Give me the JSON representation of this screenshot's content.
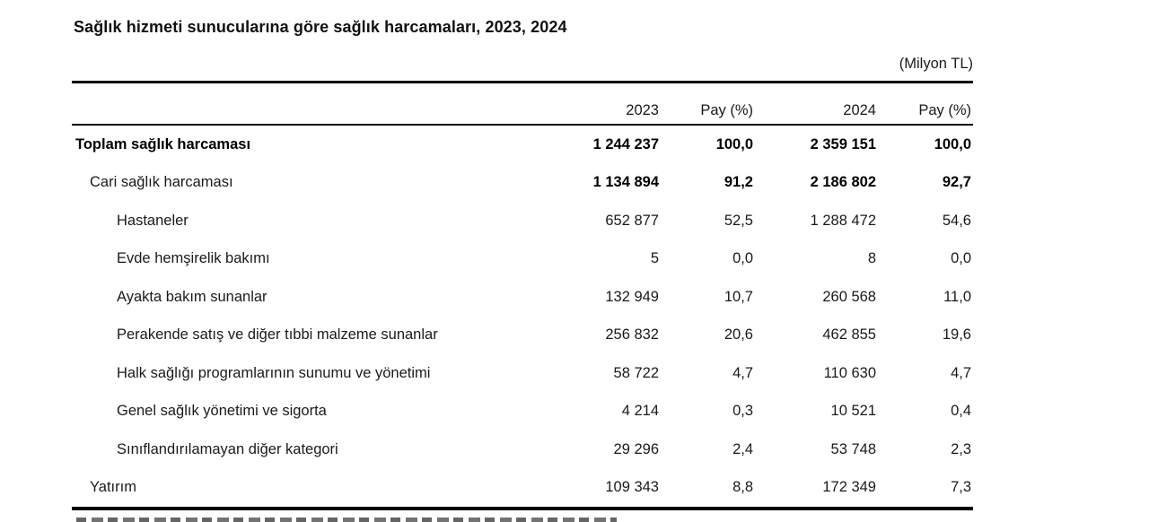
{
  "title": "Sağlık hizmeti sunucularına göre sağlık harcamaları, 2023, 2024",
  "unit_label": "(Milyon TL)",
  "colors": {
    "background": "#ffffff",
    "text": "#1a1a1a",
    "rule": "#000000"
  },
  "table": {
    "columns": [
      "2023",
      "Pay (%)",
      "2024",
      "Pay (%)"
    ],
    "rows": [
      {
        "label": "Toplam sağlık harcaması",
        "indent": 0,
        "bold_label": true,
        "bold_values": true,
        "values": [
          "1 244 237",
          "100,0",
          "2 359 151",
          "100,0"
        ]
      },
      {
        "label": "Cari sağlık harcaması",
        "indent": 1,
        "bold_label": false,
        "bold_values": true,
        "values": [
          "1 134 894",
          "91,2",
          "2 186 802",
          "92,7"
        ]
      },
      {
        "label": "Hastaneler",
        "indent": 2,
        "bold_label": false,
        "bold_values": false,
        "values": [
          "652 877",
          "52,5",
          "1 288 472",
          "54,6"
        ]
      },
      {
        "label": "Evde hemşirelik bakımı",
        "indent": 2,
        "bold_label": false,
        "bold_values": false,
        "values": [
          "5",
          "0,0",
          "8",
          "0,0"
        ]
      },
      {
        "label": "Ayakta bakım sunanlar",
        "indent": 2,
        "bold_label": false,
        "bold_values": false,
        "values": [
          "132 949",
          "10,7",
          "260 568",
          "11,0"
        ]
      },
      {
        "label": "Perakende satış ve diğer tıbbi malzeme sunanlar",
        "indent": 2,
        "bold_label": false,
        "bold_values": false,
        "values": [
          "256 832",
          "20,6",
          "462 855",
          "19,6"
        ]
      },
      {
        "label": "Halk sağlığı programlarının sunumu ve yönetimi",
        "indent": 2,
        "bold_label": false,
        "bold_values": false,
        "values": [
          "58 722",
          "4,7",
          "110 630",
          "4,7"
        ]
      },
      {
        "label": "Genel sağlık yönetimi ve sigorta",
        "indent": 2,
        "bold_label": false,
        "bold_values": false,
        "values": [
          "4 214",
          "0,3",
          "10 521",
          "0,4"
        ]
      },
      {
        "label": "Sınıflandırılamayan diğer kategori",
        "indent": 2,
        "bold_label": false,
        "bold_values": false,
        "values": [
          "29 296",
          "2,4",
          "53 748",
          "2,3"
        ]
      },
      {
        "label": "Yatırım",
        "indent": 1,
        "bold_label": false,
        "bold_values": false,
        "values": [
          "109 343",
          "8,8",
          "172 349",
          "7,3"
        ]
      }
    ]
  },
  "chart_data": {
    "type": "table",
    "title": "Sağlık hizmeti sunucularına göre sağlık harcamaları, 2023, 2024",
    "unit": "Milyon TL",
    "columns": [
      "2023",
      "Pay (%)",
      "2024",
      "Pay (%)"
    ],
    "rows": [
      {
        "kategori": "Toplam sağlık harcaması",
        "v2023": 1244237,
        "pay2023": 100.0,
        "v2024": 2359151,
        "pay2024": 100.0
      },
      {
        "kategori": "Cari sağlık harcaması",
        "v2023": 1134894,
        "pay2023": 91.2,
        "v2024": 2186802,
        "pay2024": 92.7
      },
      {
        "kategori": "Hastaneler",
        "v2023": 652877,
        "pay2023": 52.5,
        "v2024": 1288472,
        "pay2024": 54.6
      },
      {
        "kategori": "Evde hemşirelik bakımı",
        "v2023": 5,
        "pay2023": 0.0,
        "v2024": 8,
        "pay2024": 0.0
      },
      {
        "kategori": "Ayakta bakım sunanlar",
        "v2023": 132949,
        "pay2023": 10.7,
        "v2024": 260568,
        "pay2024": 11.0
      },
      {
        "kategori": "Perakende satış ve diğer tıbbi malzeme sunanlar",
        "v2023": 256832,
        "pay2023": 20.6,
        "v2024": 462855,
        "pay2024": 19.6
      },
      {
        "kategori": "Halk sağlığı programlarının sunumu ve yönetimi",
        "v2023": 58722,
        "pay2023": 4.7,
        "v2024": 110630,
        "pay2024": 4.7
      },
      {
        "kategori": "Genel sağlık yönetimi ve sigorta",
        "v2023": 4214,
        "pay2023": 0.3,
        "v2024": 10521,
        "pay2024": 0.4
      },
      {
        "kategori": "Sınıflandırılamayan diğer kategori",
        "v2023": 29296,
        "pay2023": 2.4,
        "v2024": 53748,
        "pay2024": 2.3
      },
      {
        "kategori": "Yatırım",
        "v2023": 109343,
        "pay2023": 8.8,
        "v2024": 172349,
        "pay2024": 7.3
      }
    ]
  }
}
